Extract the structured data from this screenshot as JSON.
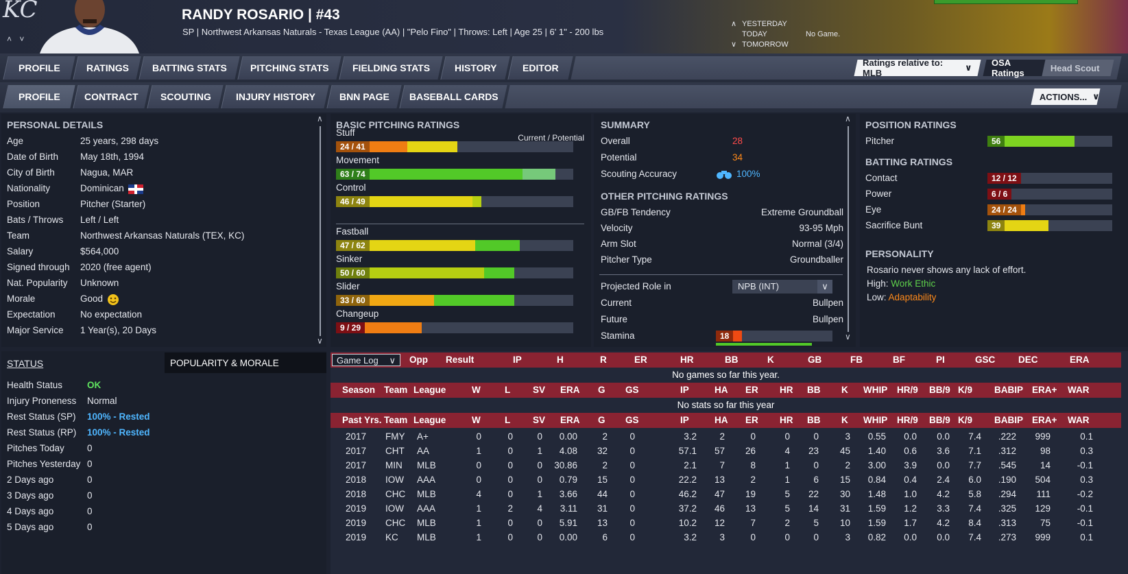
{
  "header": {
    "logo": "KC",
    "nav_arrows": "˄ ˅",
    "player_name": "RANDY ROSARIO  |  #43",
    "player_sub": "SP | Northwest Arkansas Naturals - Texas League (AA)  |  \"Pelo Fino\"  |  Throws: Left  |  Age 25  |  6' 1\" - 200 lbs",
    "yesterday": "YESTERDAY",
    "today": "TODAY",
    "tomorrow": "TOMORROW",
    "no_game": "No Game."
  },
  "tabs_row1": [
    "PROFILE",
    "RATINGS",
    "BATTING STATS",
    "PITCHING STATS",
    "FIELDING STATS",
    "HISTORY",
    "EDITOR"
  ],
  "ratings_relative": "Ratings relative to: MLB",
  "osa_ratings": "OSA Ratings",
  "head_scout": "Head Scout",
  "tabs_row2": [
    "PROFILE",
    "CONTRACT",
    "SCOUTING",
    "INJURY HISTORY",
    "BNN PAGE",
    "BASEBALL CARDS"
  ],
  "actions": "ACTIONS...",
  "personal": {
    "title": "PERSONAL DETAILS",
    "rows": [
      {
        "label": "Age",
        "value": "25 years, 298 days"
      },
      {
        "label": "Date of Birth",
        "value": "May 18th, 1994"
      },
      {
        "label": "City of Birth",
        "value": "Nagua, MAR"
      },
      {
        "label": "Nationality",
        "value": "Dominican"
      },
      {
        "label": "Position",
        "value": "Pitcher (Starter)"
      },
      {
        "label": "Bats / Throws",
        "value": "Left / Left"
      },
      {
        "label": "Team",
        "value": "Northwest Arkansas Naturals (TEX, KC)"
      },
      {
        "label": "Salary",
        "value": "$564,000"
      },
      {
        "label": "Signed through",
        "value": "2020 (free agent)"
      },
      {
        "label": "Nat. Popularity",
        "value": "Unknown"
      },
      {
        "label": "Morale",
        "value": "Good"
      },
      {
        "label": "Expectation",
        "value": "No expectation"
      },
      {
        "label": "Major Service",
        "value": "1 Year(s), 20 Days"
      }
    ]
  },
  "status": {
    "title": "STATUS",
    "tab2": "POPULARITY & MORALE",
    "rows": [
      {
        "label": "Health Status",
        "value": "OK"
      },
      {
        "label": "Injury Proneness",
        "value": "Normal"
      },
      {
        "label": "Rest Status (SP)",
        "value": "100% - Rested"
      },
      {
        "label": "Rest Status (RP)",
        "value": "100% - Rested"
      },
      {
        "label": "Pitches Today",
        "value": "0"
      },
      {
        "label": "Pitches Yesterday",
        "value": "0"
      },
      {
        "label": "2 Days ago",
        "value": "0"
      },
      {
        "label": "3 Days ago",
        "value": "0"
      },
      {
        "label": "4 Days ago",
        "value": "0"
      },
      {
        "label": "5 Days ago",
        "value": "0"
      }
    ]
  },
  "pitching": {
    "title": "BASIC PITCHING RATINGS",
    "cur_pot": "Current / Potential",
    "ratings": [
      {
        "name": "Stuff",
        "label": "24 / 41",
        "current": 24,
        "potential": 41,
        "c_color": "#ef7d13",
        "p_color": "#e4d514",
        "lab_bg": "#a4520c"
      },
      {
        "name": "Movement",
        "label": "63 / 74",
        "current": 63,
        "potential": 74,
        "c_color": "#52c928",
        "p_color": "#76c97a",
        "lab_bg": "#2f7f1a"
      },
      {
        "name": "Control",
        "label": "46 / 49",
        "current": 46,
        "potential": 49,
        "c_color": "#e4d514",
        "p_color": "#b7cf12",
        "lab_bg": "#8d8410"
      },
      {
        "name": "Fastball",
        "label": "47 / 62",
        "current": 47,
        "potential": 62,
        "c_color": "#e4d514",
        "p_color": "#52c928",
        "lab_bg": "#8d8410"
      },
      {
        "name": "Sinker",
        "label": "50 / 60",
        "current": 50,
        "potential": 60,
        "c_color": "#b7cf12",
        "p_color": "#52c928",
        "lab_bg": "#6f800d"
      },
      {
        "name": "Slider",
        "label": "33 / 60",
        "current": 33,
        "potential": 60,
        "c_color": "#f1a713",
        "p_color": "#52c928",
        "lab_bg": "#8f640c"
      },
      {
        "name": "Changeup",
        "label": "9 / 29",
        "current": 9,
        "potential": 29,
        "c_color": "#d3141e",
        "p_color": "#ef7d13",
        "lab_bg": "#7d0f14"
      }
    ]
  },
  "summary": {
    "title": "SUMMARY",
    "overall_label": "Overall",
    "overall": "28",
    "potential_label": "Potential",
    "potential": "34",
    "scouting_label": "Scouting Accuracy",
    "scouting": "100%",
    "other_title": "OTHER PITCHING RATINGS",
    "rows": [
      {
        "label": "GB/FB Tendency",
        "value": "Extreme Groundball"
      },
      {
        "label": "Velocity",
        "value": "93-95 Mph"
      },
      {
        "label": "Arm Slot",
        "value": "Normal (3/4)"
      },
      {
        "label": "Pitcher Type",
        "value": "Groundballer"
      }
    ],
    "projected_label": "Projected Role in",
    "projected_select": "NPB (INT)",
    "current_label": "Current",
    "current_value": "Bullpen",
    "future_label": "Future",
    "future_value": "Bullpen",
    "stamina_label": "Stamina",
    "stamina": 18
  },
  "position": {
    "title": "POSITION RATINGS",
    "pitcher_label": "Pitcher",
    "pitcher": 56,
    "batting_title": "BATTING RATINGS",
    "batting": [
      {
        "name": "Contact",
        "label": "12 / 12",
        "value": 12,
        "color": "#d3141e",
        "lab_bg": "#7d0f14"
      },
      {
        "name": "Power",
        "label": "6 / 6",
        "value": 6,
        "color": "#d3141e",
        "lab_bg": "#7d0f14"
      },
      {
        "name": "Eye",
        "label": "24 / 24",
        "value": 24,
        "color": "#ef7d13",
        "lab_bg": "#a4520c"
      },
      {
        "name": "Sacrifice Bunt",
        "label": "39",
        "value": 39,
        "color": "#e4d514",
        "lab_bg": "#8d8410"
      }
    ],
    "personality_title": "PERSONALITY",
    "personality_text": "Rosario never shows any lack of effort.",
    "high_label": "High:",
    "high_value": "Work Ethic",
    "low_label": "Low:",
    "low_value": "Adaptability"
  },
  "gamelog": {
    "select": "Game Log",
    "headers": [
      "Opp",
      "Result",
      "IP",
      "H",
      "R",
      "ER",
      "HR",
      "BB",
      "K",
      "GB",
      "FB",
      "BF",
      "PI",
      "GSC",
      "DEC",
      "ERA"
    ],
    "notice": "No games so far this year."
  },
  "season": {
    "headers": [
      "Season",
      "Team",
      "League",
      "W",
      "L",
      "SV",
      "ERA",
      "G",
      "GS",
      "IP",
      "HA",
      "ER",
      "HR",
      "BB",
      "K",
      "WHIP",
      "HR/9",
      "BB/9",
      "K/9",
      "BABIP",
      "ERA+",
      "WAR"
    ],
    "notice": "No stats so far this year"
  },
  "past": {
    "headers": [
      "Past Yrs.",
      "Team",
      "League",
      "W",
      "L",
      "SV",
      "ERA",
      "G",
      "GS",
      "IP",
      "HA",
      "ER",
      "HR",
      "BB",
      "K",
      "WHIP",
      "HR/9",
      "BB/9",
      "K/9",
      "BABIP",
      "ERA+",
      "WAR"
    ],
    "rows": [
      [
        "2017",
        "FMY",
        "A+",
        "0",
        "0",
        "0",
        "0.00",
        "2",
        "0",
        "3.2",
        "2",
        "0",
        "0",
        "0",
        "3",
        "0.55",
        "0.0",
        "0.0",
        "7.4",
        ".222",
        "999",
        "0.1"
      ],
      [
        "2017",
        "CHT",
        "AA",
        "1",
        "0",
        "1",
        "4.08",
        "32",
        "0",
        "57.1",
        "57",
        "26",
        "4",
        "23",
        "45",
        "1.40",
        "0.6",
        "3.6",
        "7.1",
        ".312",
        "98",
        "0.3"
      ],
      [
        "2017",
        "MIN",
        "MLB",
        "0",
        "0",
        "0",
        "30.86",
        "2",
        "0",
        "2.1",
        "7",
        "8",
        "1",
        "0",
        "2",
        "3.00",
        "3.9",
        "0.0",
        "7.7",
        ".545",
        "14",
        "-0.1"
      ],
      [
        "2018",
        "IOW",
        "AAA",
        "0",
        "0",
        "0",
        "0.79",
        "15",
        "0",
        "22.2",
        "13",
        "2",
        "1",
        "6",
        "15",
        "0.84",
        "0.4",
        "2.4",
        "6.0",
        ".190",
        "504",
        "0.3"
      ],
      [
        "2018",
        "CHC",
        "MLB",
        "4",
        "0",
        "1",
        "3.66",
        "44",
        "0",
        "46.2",
        "47",
        "19",
        "5",
        "22",
        "30",
        "1.48",
        "1.0",
        "4.2",
        "5.8",
        ".294",
        "111",
        "-0.2"
      ],
      [
        "2019",
        "IOW",
        "AAA",
        "1",
        "2",
        "4",
        "3.11",
        "31",
        "0",
        "37.2",
        "46",
        "13",
        "5",
        "14",
        "31",
        "1.59",
        "1.2",
        "3.3",
        "7.4",
        ".325",
        "129",
        "-0.1"
      ],
      [
        "2019",
        "CHC",
        "MLB",
        "1",
        "0",
        "0",
        "5.91",
        "13",
        "0",
        "10.2",
        "12",
        "7",
        "2",
        "5",
        "10",
        "1.59",
        "1.7",
        "4.2",
        "8.4",
        ".313",
        "75",
        "-0.1"
      ],
      [
        "2019",
        "KC",
        "MLB",
        "1",
        "0",
        "0",
        "0.00",
        "6",
        "0",
        "3.2",
        "3",
        "0",
        "0",
        "0",
        "3",
        "0.82",
        "0.0",
        "0.0",
        "7.4",
        ".273",
        "999",
        "0.1"
      ]
    ]
  }
}
